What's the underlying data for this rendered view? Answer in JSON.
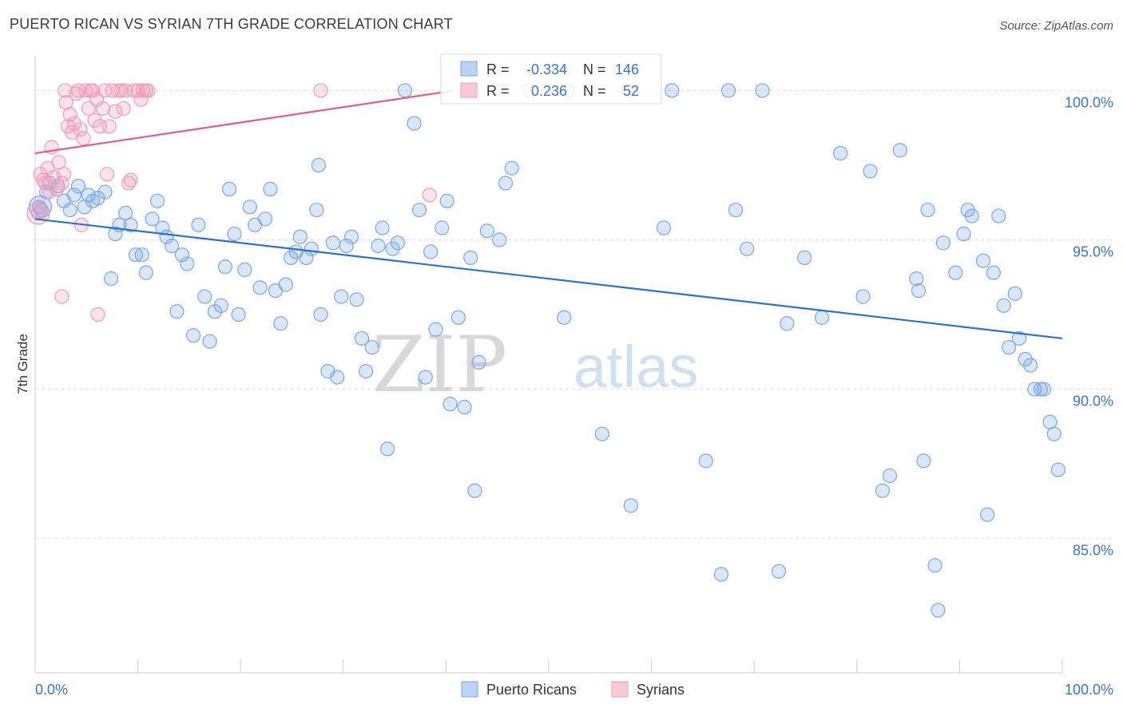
{
  "title": "PUERTO RICAN VS SYRIAN 7TH GRADE CORRELATION CHART",
  "source": "Source: ZipAtlas.com",
  "watermark": {
    "zip": "ZIP",
    "atlas": "atlas"
  },
  "legend_box": {
    "rows": [
      {
        "r_label": "R =",
        "r_value": "-0.334",
        "n_label": "N =",
        "n_value": "146"
      },
      {
        "r_label": "R =",
        "r_value": "0.236",
        "n_label": "N =",
        "n_value": "52"
      }
    ]
  },
  "colors": {
    "blue": "#7aa7e8",
    "blue_line": "#2f6fd0",
    "blue_text": "#3a73d1",
    "pink": "#f29bb6",
    "pink_line": "#e35d8a",
    "grid": "#dcdcdc",
    "axis_text": "#3a73d1"
  },
  "chart_data": {
    "type": "scatter",
    "title": "PUERTO RICAN VS SYRIAN 7TH GRADE CORRELATION CHART",
    "xlabel": "",
    "ylabel": "7th Grade",
    "xlim": [
      0,
      100
    ],
    "ylim": [
      80.5,
      101.0
    ],
    "x_tick_labels": [
      "0.0%",
      "100.0%"
    ],
    "y_ticks": [
      85,
      90,
      95,
      100
    ],
    "y_tick_labels": [
      "85.0%",
      "90.0%",
      "95.0%",
      "100.0%"
    ],
    "legend_position": "bottom-center",
    "series": [
      {
        "name": "Puerto Ricans",
        "color": "#7aa7e8",
        "r": -0.334,
        "n": 146,
        "trend": {
          "x": [
            0,
            100
          ],
          "y": [
            95.7,
            91.7
          ]
        },
        "points": [
          [
            0.4,
            96.1
          ],
          [
            0.6,
            96.0
          ],
          [
            1.1,
            96.6
          ],
          [
            1.4,
            96.9
          ],
          [
            2.2,
            96.8
          ],
          [
            2.8,
            96.3
          ],
          [
            3.4,
            96.0
          ],
          [
            3.8,
            96.5
          ],
          [
            4.2,
            96.8
          ],
          [
            4.8,
            96.1
          ],
          [
            5.2,
            96.5
          ],
          [
            5.6,
            96.3
          ],
          [
            6.1,
            96.4
          ],
          [
            6.8,
            96.6
          ],
          [
            7.4,
            93.7
          ],
          [
            7.8,
            95.2
          ],
          [
            8.2,
            95.5
          ],
          [
            8.8,
            95.9
          ],
          [
            9.3,
            95.5
          ],
          [
            9.8,
            94.5
          ],
          [
            10.4,
            94.5
          ],
          [
            10.8,
            93.9
          ],
          [
            11.4,
            95.7
          ],
          [
            11.9,
            96.3
          ],
          [
            12.4,
            95.4
          ],
          [
            12.8,
            95.1
          ],
          [
            13.3,
            94.8
          ],
          [
            13.8,
            92.6
          ],
          [
            14.3,
            94.5
          ],
          [
            14.8,
            94.2
          ],
          [
            15.4,
            91.8
          ],
          [
            15.9,
            95.5
          ],
          [
            16.5,
            93.1
          ],
          [
            17.0,
            91.6
          ],
          [
            17.5,
            92.6
          ],
          [
            18.1,
            92.8
          ],
          [
            18.5,
            94.1
          ],
          [
            18.9,
            96.7
          ],
          [
            19.4,
            95.2
          ],
          [
            19.8,
            92.5
          ],
          [
            20.4,
            94.0
          ],
          [
            20.9,
            96.1
          ],
          [
            21.4,
            95.5
          ],
          [
            21.9,
            93.4
          ],
          [
            22.4,
            95.7
          ],
          [
            22.9,
            96.7
          ],
          [
            23.4,
            93.3
          ],
          [
            23.9,
            92.2
          ],
          [
            24.4,
            93.5
          ],
          [
            24.9,
            94.4
          ],
          [
            25.4,
            94.6
          ],
          [
            25.8,
            95.1
          ],
          [
            26.4,
            94.4
          ],
          [
            26.9,
            94.7
          ],
          [
            27.4,
            96.0
          ],
          [
            27.6,
            97.5
          ],
          [
            27.8,
            92.5
          ],
          [
            28.5,
            90.6
          ],
          [
            29.0,
            94.9
          ],
          [
            29.4,
            90.4
          ],
          [
            29.8,
            93.1
          ],
          [
            30.3,
            94.8
          ],
          [
            30.8,
            95.1
          ],
          [
            31.3,
            93.0
          ],
          [
            31.8,
            91.7
          ],
          [
            32.2,
            90.6
          ],
          [
            32.8,
            91.4
          ],
          [
            33.4,
            94.8
          ],
          [
            33.8,
            95.4
          ],
          [
            34.3,
            88.0
          ],
          [
            34.8,
            94.7
          ],
          [
            35.3,
            94.9
          ],
          [
            36.0,
            100.0
          ],
          [
            36.9,
            98.9
          ],
          [
            37.4,
            96.0
          ],
          [
            38.0,
            90.4
          ],
          [
            38.5,
            94.6
          ],
          [
            39.0,
            92.0
          ],
          [
            39.6,
            95.4
          ],
          [
            40.1,
            96.3
          ],
          [
            40.4,
            89.5
          ],
          [
            41.2,
            92.4
          ],
          [
            41.8,
            89.4
          ],
          [
            42.4,
            94.4
          ],
          [
            42.8,
            86.6
          ],
          [
            43.2,
            90.9
          ],
          [
            44.0,
            95.3
          ],
          [
            45.2,
            95.0
          ],
          [
            45.8,
            96.9
          ],
          [
            46.4,
            97.4
          ],
          [
            48.2,
            100.0
          ],
          [
            51.8,
            100.0
          ],
          [
            51.5,
            92.4
          ],
          [
            55.2,
            88.5
          ],
          [
            57.8,
            100.0
          ],
          [
            58.0,
            86.1
          ],
          [
            61.2,
            95.4
          ],
          [
            62.0,
            100.0
          ],
          [
            65.3,
            87.6
          ],
          [
            66.8,
            83.8
          ],
          [
            67.5,
            100.0
          ],
          [
            68.2,
            96.0
          ],
          [
            69.3,
            94.7
          ],
          [
            70.8,
            100.0
          ],
          [
            72.4,
            83.9
          ],
          [
            73.2,
            92.2
          ],
          [
            74.9,
            94.4
          ],
          [
            76.6,
            92.4
          ],
          [
            78.4,
            97.9
          ],
          [
            80.6,
            93.1
          ],
          [
            81.3,
            97.3
          ],
          [
            82.5,
            86.6
          ],
          [
            83.2,
            87.1
          ],
          [
            84.2,
            98.0
          ],
          [
            85.8,
            93.7
          ],
          [
            86.0,
            93.3
          ],
          [
            86.5,
            87.6
          ],
          [
            86.9,
            96.0
          ],
          [
            87.6,
            84.1
          ],
          [
            87.9,
            82.6
          ],
          [
            88.4,
            94.9
          ],
          [
            89.6,
            93.9
          ],
          [
            90.4,
            95.2
          ],
          [
            90.8,
            96.0
          ],
          [
            91.2,
            95.8
          ],
          [
            92.3,
            94.3
          ],
          [
            92.7,
            85.8
          ],
          [
            93.3,
            93.9
          ],
          [
            93.8,
            95.8
          ],
          [
            94.3,
            92.8
          ],
          [
            95.4,
            93.2
          ],
          [
            94.8,
            91.4
          ],
          [
            95.8,
            91.7
          ],
          [
            96.4,
            91.0
          ],
          [
            96.9,
            90.8
          ],
          [
            97.3,
            90.0
          ],
          [
            97.9,
            90.0
          ],
          [
            98.2,
            90.0
          ],
          [
            98.8,
            88.9
          ],
          [
            99.2,
            88.5
          ],
          [
            99.6,
            87.3
          ]
        ]
      },
      {
        "name": "Syrians",
        "color": "#f29bb6",
        "r": 0.236,
        "n": 52,
        "trend": {
          "x": [
            0,
            40.8
          ],
          "y": [
            97.9,
            100.0
          ]
        },
        "points": [
          [
            0.3,
            95.9
          ],
          [
            0.5,
            97.2
          ],
          [
            0.8,
            97.0
          ],
          [
            1.0,
            96.9
          ],
          [
            1.2,
            97.4
          ],
          [
            1.4,
            96.6
          ],
          [
            1.6,
            98.1
          ],
          [
            1.8,
            97.1
          ],
          [
            2.1,
            96.7
          ],
          [
            2.3,
            97.6
          ],
          [
            2.6,
            96.9
          ],
          [
            2.8,
            97.2
          ],
          [
            2.9,
            100.0
          ],
          [
            3.0,
            99.6
          ],
          [
            3.2,
            98.8
          ],
          [
            3.4,
            99.2
          ],
          [
            3.6,
            98.6
          ],
          [
            3.8,
            98.9
          ],
          [
            4.0,
            99.9
          ],
          [
            4.2,
            100.0
          ],
          [
            4.4,
            98.7
          ],
          [
            4.5,
            95.5
          ],
          [
            4.7,
            98.4
          ],
          [
            4.9,
            100.0
          ],
          [
            5.2,
            99.4
          ],
          [
            5.4,
            100.0
          ],
          [
            5.6,
            100.0
          ],
          [
            5.8,
            99.0
          ],
          [
            6.0,
            99.7
          ],
          [
            6.1,
            92.5
          ],
          [
            6.3,
            98.8
          ],
          [
            6.6,
            99.4
          ],
          [
            6.8,
            100.0
          ],
          [
            7.0,
            97.2
          ],
          [
            7.2,
            98.8
          ],
          [
            7.5,
            100.0
          ],
          [
            7.8,
            99.3
          ],
          [
            8.1,
            100.0
          ],
          [
            8.4,
            100.0
          ],
          [
            8.6,
            99.4
          ],
          [
            8.8,
            100.0
          ],
          [
            9.1,
            96.9
          ],
          [
            9.3,
            97.0
          ],
          [
            9.6,
            100.0
          ],
          [
            10.0,
            100.0
          ],
          [
            10.3,
            99.7
          ],
          [
            10.5,
            100.0
          ],
          [
            10.8,
            100.0
          ],
          [
            11.0,
            100.0
          ],
          [
            2.6,
            93.1
          ],
          [
            27.8,
            100.0
          ],
          [
            38.4,
            96.5
          ]
        ]
      }
    ]
  },
  "bottom_legend": [
    "Puerto Ricans",
    "Syrians"
  ]
}
